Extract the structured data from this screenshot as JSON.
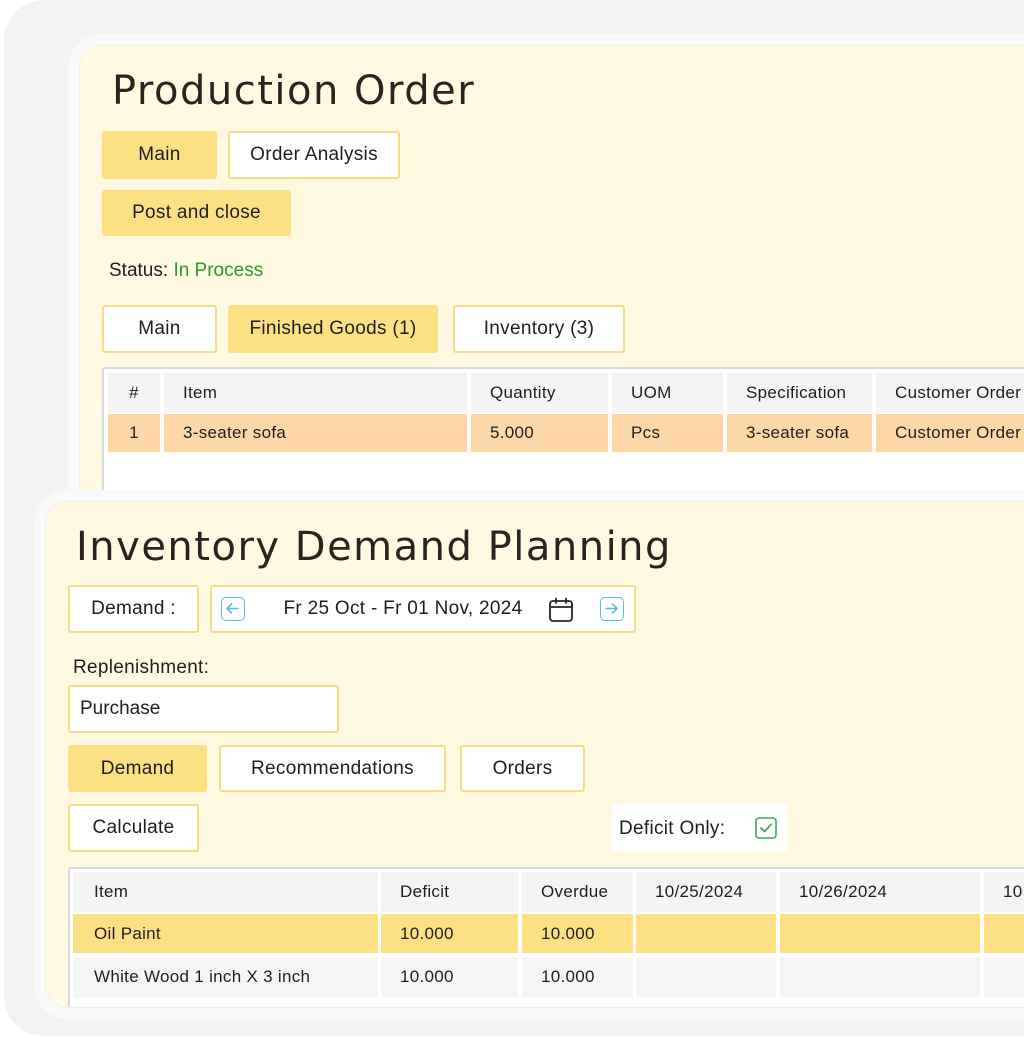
{
  "production_order": {
    "title": "Production Order",
    "tabs_top": [
      "Main",
      "Order Analysis"
    ],
    "post_button": "Post and close",
    "status_label": "Status:",
    "status_value": "In Process",
    "status_color": "#2a9a2a",
    "tabs_bottom": [
      "Main",
      "Finished Goods (1)",
      "Inventory (3)"
    ],
    "table": {
      "headers": [
        "#",
        "Item",
        "Quantity",
        "UOM",
        "Specification",
        "Customer Order"
      ],
      "rows": [
        [
          "1",
          "3-seater sofa",
          "5.000",
          "Pcs",
          "3-seater sofa",
          "Customer Order"
        ]
      ]
    }
  },
  "demand_planning": {
    "title": "Inventory Demand Planning",
    "demand_label": "Demand :",
    "date_range": "Fr 25 Oct - Fr 01 Nov, 2024",
    "prev_icon": "arrow-left-icon",
    "next_icon": "arrow-right-icon",
    "calendar_icon": "calendar-icon",
    "replenishment_label": "Replenishment:",
    "replenishment_value": "Purchase",
    "tabs": [
      "Demand",
      "Recommendations",
      "Orders"
    ],
    "calculate_button": "Calculate",
    "deficit_only_label": "Deficit Only:",
    "deficit_only_checked": true,
    "table": {
      "headers": [
        "Item",
        "Deficit",
        "Overdue",
        "10/25/2024",
        "10/26/2024",
        "10"
      ],
      "rows": [
        [
          "Oil Paint",
          "10.000",
          "10.000",
          "",
          "",
          ""
        ],
        [
          "White Wood 1 inch X 3 inch",
          "10.000",
          "10.000",
          "",
          "",
          ""
        ]
      ]
    }
  },
  "colors": {
    "accent_yellow": "#fde083",
    "card_background": "#fff9e2",
    "selected_row": "#fdd8a6",
    "arrow_blue": "#5bbde6",
    "check_green": "#3aa860"
  }
}
